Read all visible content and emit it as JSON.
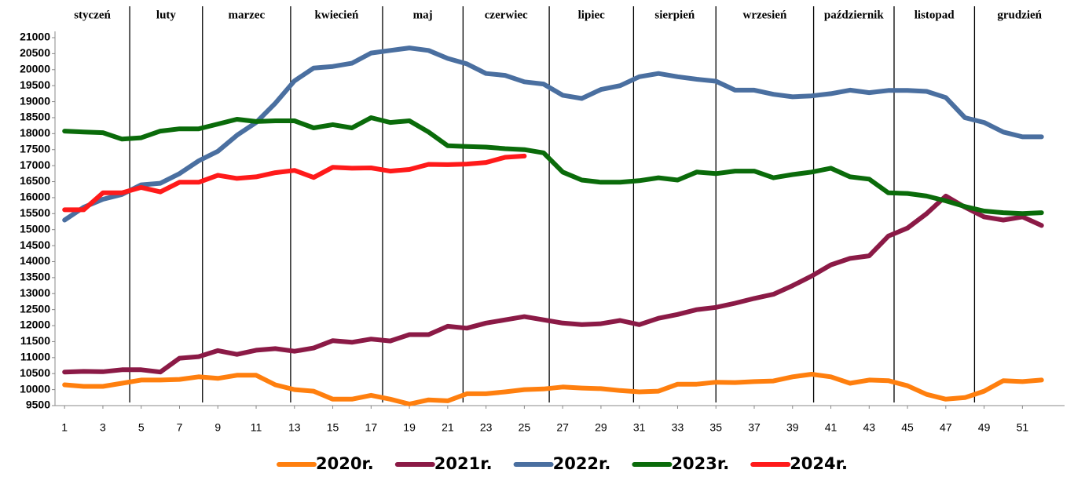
{
  "chart_data": {
    "type": "line",
    "months": [
      "styczeń",
      "luty",
      "marzec",
      "kwiecień",
      "maj",
      "czerwiec",
      "lipiec",
      "sierpień",
      "wrzesień",
      "październik",
      "listopad",
      "grudzień"
    ],
    "month_boundaries": [
      4.4,
      8.2,
      12.8,
      17.6,
      21.8,
      26.3,
      30.7,
      35,
      40.1,
      44.3,
      48.5
    ],
    "x": [
      1,
      2,
      3,
      4,
      5,
      6,
      7,
      8,
      9,
      10,
      11,
      12,
      13,
      14,
      15,
      16,
      17,
      18,
      19,
      20,
      21,
      22,
      23,
      24,
      25,
      26,
      27,
      28,
      29,
      30,
      31,
      32,
      33,
      34,
      35,
      36,
      37,
      38,
      39,
      40,
      41,
      42,
      43,
      44,
      45,
      46,
      47,
      48,
      49,
      50,
      51,
      52
    ],
    "xlim": [
      0.5,
      53.2
    ],
    "xticks": [
      1,
      3,
      5,
      7,
      9,
      11,
      13,
      15,
      17,
      19,
      21,
      23,
      25,
      27,
      29,
      31,
      33,
      35,
      37,
      39,
      41,
      43,
      45,
      47,
      49,
      51
    ],
    "ylim": [
      9500,
      21000
    ],
    "yticks": [
      9500,
      10000,
      10500,
      11000,
      11500,
      12000,
      12500,
      13000,
      13500,
      14000,
      14500,
      15000,
      15500,
      16000,
      16500,
      17000,
      17500,
      18000,
      18500,
      19000,
      19500,
      20000,
      20500,
      21000
    ],
    "series": [
      {
        "name": "2020r.",
        "color": "#ff7f0e",
        "values": [
          10150,
          10100,
          10100,
          10200,
          10300,
          10300,
          10320,
          10400,
          10350,
          10450,
          10450,
          10150,
          10000,
          9950,
          9700,
          9700,
          9820,
          9700,
          9550,
          9680,
          9650,
          9870,
          9870,
          9930,
          10000,
          10020,
          10080,
          10050,
          10030,
          9970,
          9930,
          9950,
          10170,
          10170,
          10230,
          10220,
          10250,
          10270,
          10400,
          10480,
          10400,
          10200,
          10300,
          10280,
          10120,
          9850,
          9700,
          9750,
          9950,
          10280,
          10250,
          10300
        ]
      },
      {
        "name": "2021r.",
        "color": "#8b1a46",
        "values": [
          10550,
          10570,
          10560,
          10620,
          10620,
          10550,
          10980,
          11030,
          11220,
          11100,
          11230,
          11280,
          11200,
          11300,
          11530,
          11480,
          11580,
          11520,
          11720,
          11720,
          11980,
          11920,
          12080,
          12180,
          12280,
          12180,
          12080,
          12030,
          12060,
          12160,
          12030,
          12230,
          12350,
          12500,
          12570,
          12700,
          12850,
          12980,
          13250,
          13550,
          13900,
          14100,
          14180,
          14800,
          15050,
          15500,
          16050,
          15700,
          15400,
          15300,
          15400,
          15130
        ]
      },
      {
        "name": "2022r.",
        "color": "#4a6fa0",
        "values": [
          15300,
          15700,
          15950,
          16100,
          16400,
          16450,
          16750,
          17150,
          17450,
          17950,
          18350,
          18950,
          19650,
          20050,
          20100,
          20200,
          20520,
          20600,
          20680,
          20600,
          20350,
          20180,
          19880,
          19820,
          19620,
          19550,
          19200,
          19100,
          19380,
          19500,
          19780,
          19880,
          19780,
          19700,
          19640,
          19360,
          19360,
          19230,
          19150,
          19180,
          19250,
          19360,
          19280,
          19350,
          19350,
          19320,
          19130,
          18500,
          18350,
          18050,
          17900,
          17900
        ]
      },
      {
        "name": "2023r.",
        "color": "#0a6b0a",
        "values": [
          18080,
          18050,
          18030,
          17830,
          17870,
          18080,
          18150,
          18150,
          18300,
          18450,
          18380,
          18400,
          18400,
          18180,
          18280,
          18180,
          18500,
          18350,
          18400,
          18050,
          17620,
          17600,
          17580,
          17530,
          17500,
          17400,
          16800,
          16550,
          16480,
          16480,
          16530,
          16620,
          16550,
          16800,
          16750,
          16830,
          16830,
          16620,
          16720,
          16800,
          16920,
          16650,
          16580,
          16150,
          16130,
          16050,
          15900,
          15720,
          15580,
          15530,
          15500,
          15530
        ]
      },
      {
        "name": "2024r.",
        "color": "#ff1a1a",
        "values": [
          15620,
          15620,
          16150,
          16150,
          16320,
          16180,
          16480,
          16480,
          16700,
          16600,
          16650,
          16780,
          16850,
          16630,
          16950,
          16920,
          16930,
          16830,
          16880,
          17040,
          17030,
          17050,
          17100,
          17260,
          17300,
          null,
          null,
          null,
          null,
          null,
          null,
          null,
          null,
          null,
          null,
          null,
          null,
          null,
          null,
          null,
          null,
          null,
          null,
          null,
          null,
          null,
          null,
          null,
          null,
          null,
          null,
          null
        ]
      }
    ]
  }
}
